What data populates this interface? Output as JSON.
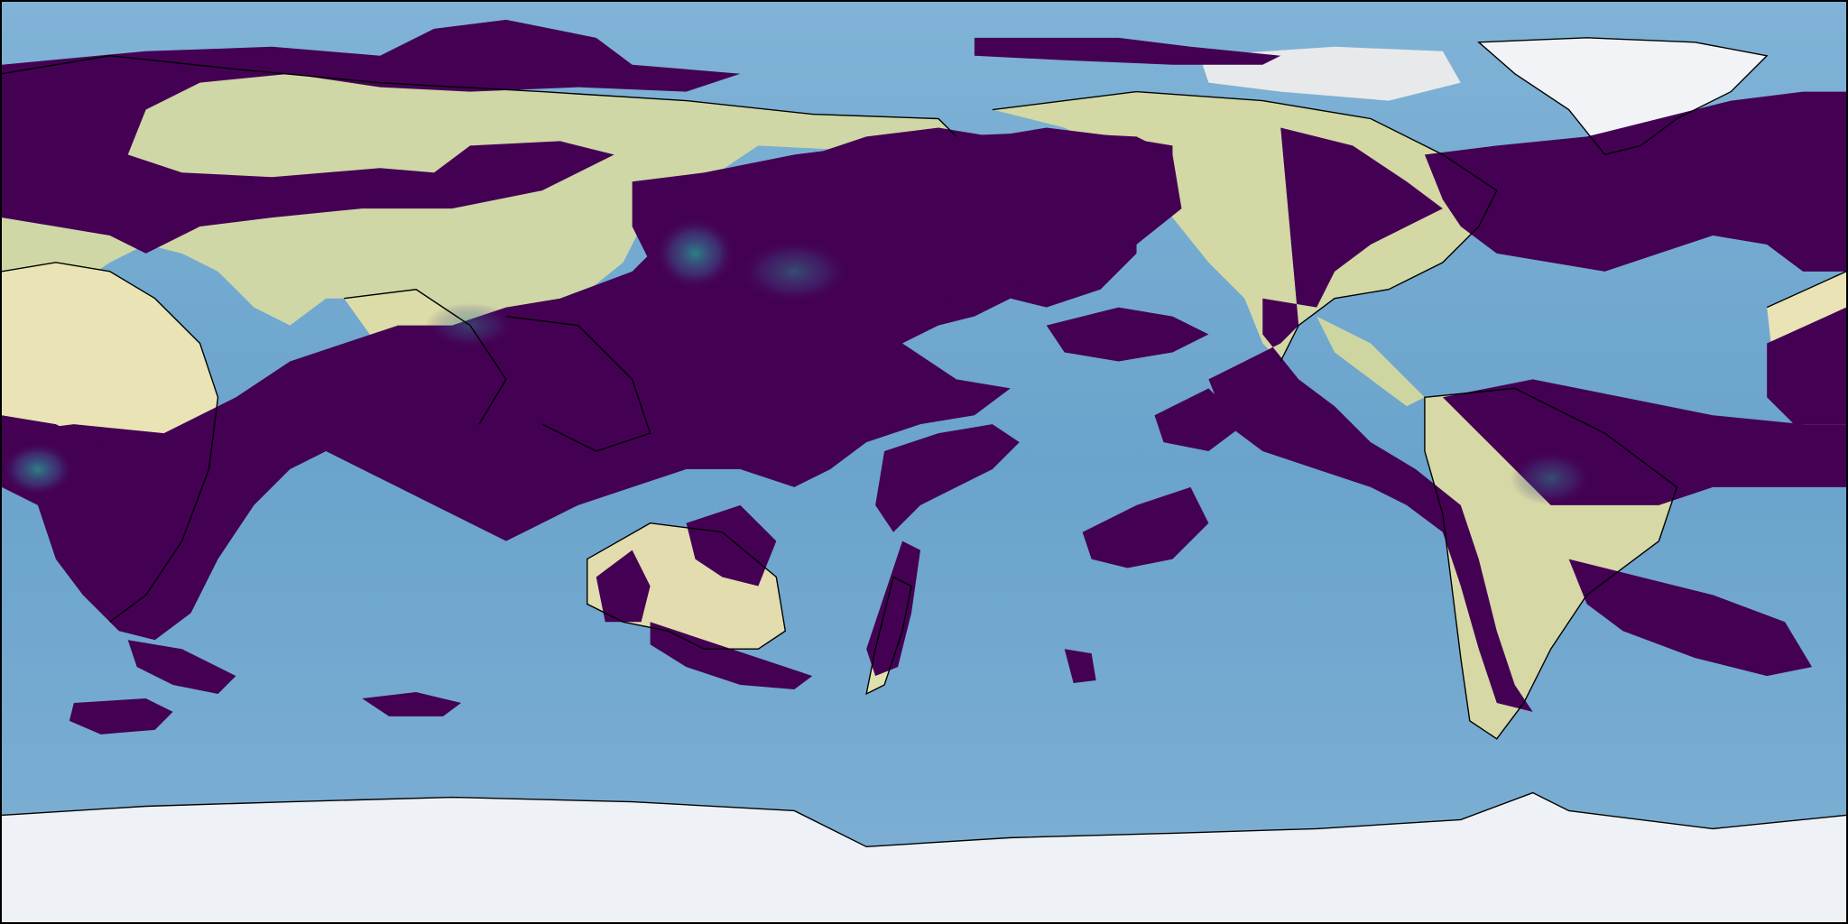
{
  "map": {
    "projection": "equirectangular",
    "central_longitude": 180,
    "basemap": "shaded-relief",
    "overlay_type": "filled-contour",
    "colormap": "viridis",
    "title": "",
    "colorbar": "none",
    "colors": {
      "ocean": "#74a9cf",
      "ocean_deep": "#5d97c2",
      "land_arid": "#e8e3b8",
      "land_temperate": "#c9d3a0",
      "ice": "#eef1f6",
      "overlay_low": "#440154",
      "overlay_mid": "#3b528b",
      "overlay_high": "#21918c",
      "coastline": "#000000"
    }
  }
}
